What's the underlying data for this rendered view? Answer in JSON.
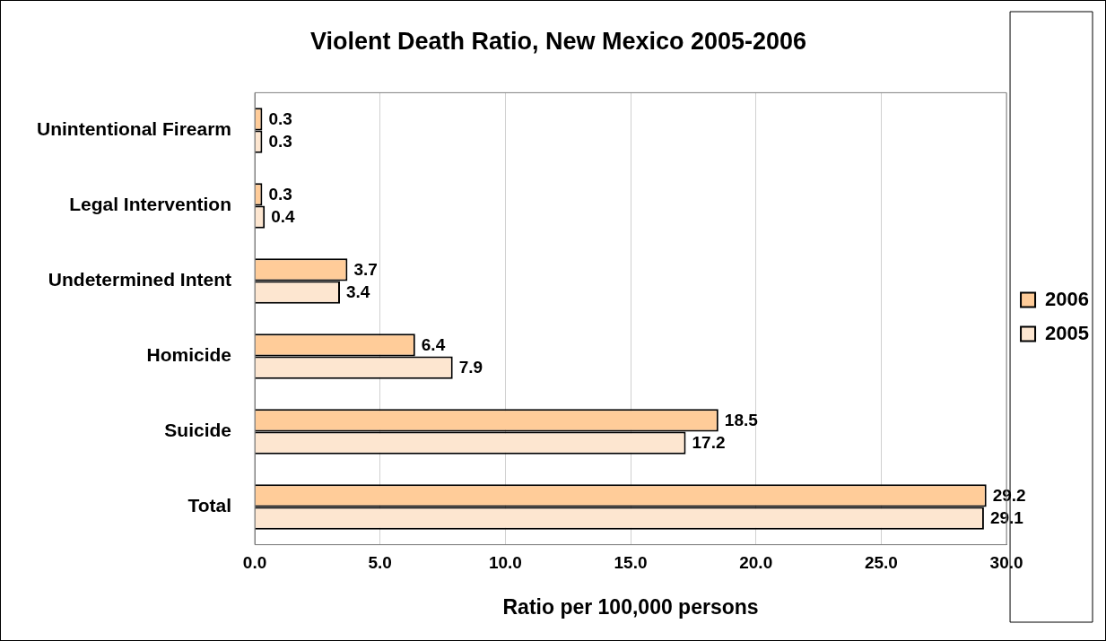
{
  "chart_data": {
    "type": "bar",
    "orientation": "horizontal",
    "title": "Violent Death Ratio, New Mexico 2005-2006",
    "xlabel": "Ratio per 100,000 persons",
    "categories": [
      "Unintentional Firearm",
      "Legal Intervention",
      "Undetermined Intent",
      "Homicide",
      "Suicide",
      "Total"
    ],
    "series": [
      {
        "name": "2006",
        "color": "#ffcc99",
        "values": [
          0.3,
          0.3,
          3.7,
          6.4,
          18.5,
          29.2
        ]
      },
      {
        "name": "2005",
        "color": "#fde6d0",
        "values": [
          0.3,
          0.4,
          3.4,
          7.9,
          17.2,
          29.1
        ]
      }
    ],
    "xlim": [
      0,
      30
    ],
    "xticks": [
      {
        "value": 0,
        "label": "0.0"
      },
      {
        "value": 5,
        "label": "5.0"
      },
      {
        "value": 10,
        "label": "10.0"
      },
      {
        "value": 15,
        "label": "15.0"
      },
      {
        "value": 20,
        "label": "20.0"
      },
      {
        "value": 25,
        "label": "25.0"
      },
      {
        "value": 30,
        "label": "30.0"
      }
    ],
    "grid": "x",
    "legend": "right",
    "data_labels": true
  }
}
